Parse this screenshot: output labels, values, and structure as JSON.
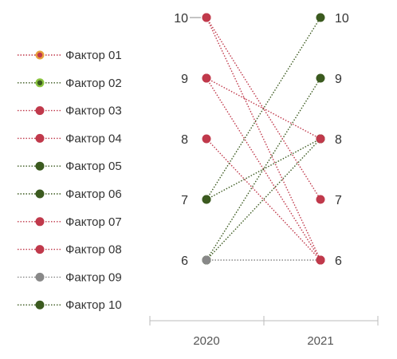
{
  "chart_data": {
    "type": "line",
    "title": "",
    "xlabel": "",
    "ylabel": "",
    "categories": [
      "2020",
      "2021"
    ],
    "ylim": [
      6,
      10
    ],
    "grid": false,
    "legend_position": "left",
    "series": [
      {
        "name": "Фактор 01",
        "values": [
          10,
          6
        ],
        "color": "#c0394b",
        "marker_ring": "#e8a33d"
      },
      {
        "name": "Фактор 02",
        "values": [
          6,
          9
        ],
        "color": "#3b5a1f",
        "marker_ring": "#8ac43f"
      },
      {
        "name": "Фактор 03",
        "values": [
          9,
          8
        ],
        "color": "#c0394b"
      },
      {
        "name": "Фактор 04",
        "values": [
          8,
          6
        ],
        "color": "#c0394b"
      },
      {
        "name": "Фактор 05",
        "values": [
          7,
          10
        ],
        "color": "#3b5a1f"
      },
      {
        "name": "Фактор 06",
        "values": [
          6,
          8
        ],
        "color": "#3b5a1f"
      },
      {
        "name": "Фактор 07",
        "values": [
          9,
          6
        ],
        "color": "#c0394b"
      },
      {
        "name": "Фактор 08",
        "values": [
          10,
          7
        ],
        "color": "#c0394b"
      },
      {
        "name": "Фактор 09",
        "values": [
          6,
          6
        ],
        "color": "#888888"
      },
      {
        "name": "Фактор 10",
        "values": [
          7,
          8
        ],
        "color": "#3b5a1f"
      }
    ],
    "left_tick_labels": [
      "10",
      "9",
      "8",
      "7",
      "6"
    ],
    "right_tick_labels": [
      "10",
      "9",
      "8",
      "7",
      "6"
    ]
  }
}
